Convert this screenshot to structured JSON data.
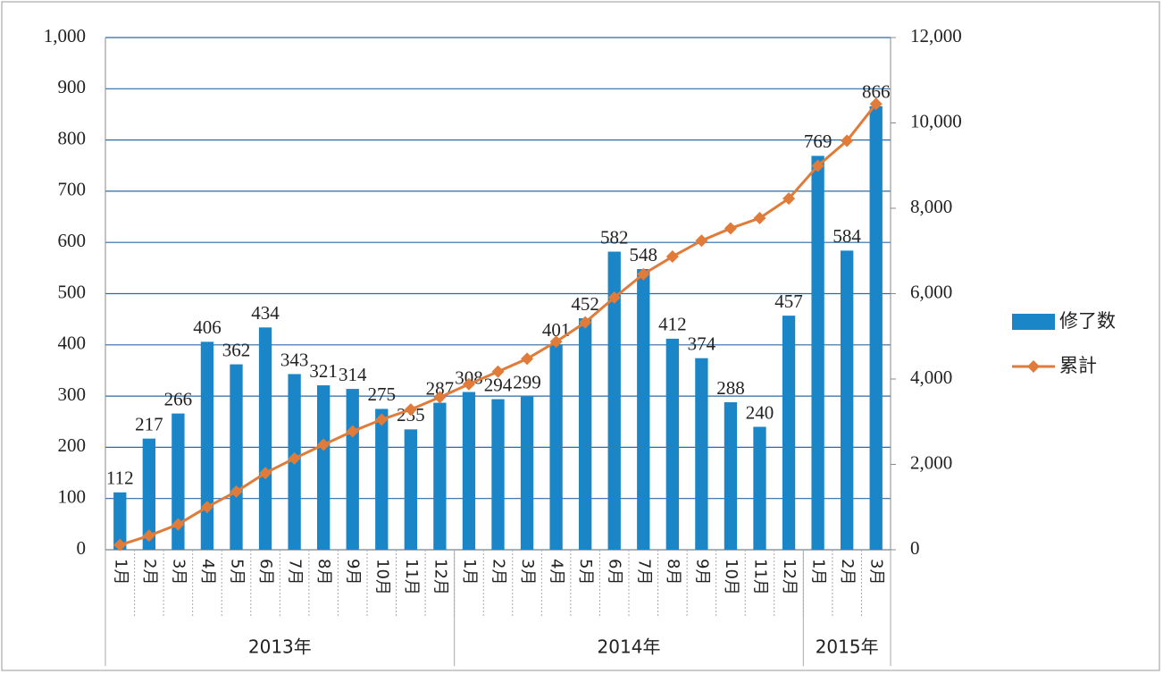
{
  "chart_data": {
    "type": "bar-line",
    "groups": [
      {
        "label": "2013年",
        "categories": [
          "1月",
          "2月",
          "3月",
          "4月",
          "5月",
          "6月",
          "7月",
          "8月",
          "9月",
          "10月",
          "11月",
          "12月"
        ]
      },
      {
        "label": "2014年",
        "categories": [
          "1月",
          "2月",
          "3月",
          "4月",
          "5月",
          "6月",
          "7月",
          "8月",
          "9月",
          "10月",
          "11月",
          "12月"
        ]
      },
      {
        "label": "2015年",
        "categories": [
          "1月",
          "2月",
          "3月"
        ]
      }
    ],
    "series": [
      {
        "name": "修了数",
        "type": "bar",
        "color": "#1a86c8",
        "values": [
          112,
          217,
          266,
          406,
          362,
          434,
          343,
          321,
          314,
          275,
          235,
          287,
          308,
          294,
          299,
          401,
          452,
          582,
          548,
          412,
          374,
          288,
          240,
          457,
          769,
          584,
          866
        ]
      },
      {
        "name": "累計",
        "type": "line",
        "axis": "y2",
        "color": "#e07b39",
        "values": [
          112,
          329,
          595,
          1001,
          1363,
          1797,
          2140,
          2461,
          2775,
          3050,
          3285,
          3572,
          3880,
          4174,
          4473,
          4874,
          5326,
          5908,
          6456,
          6868,
          7242,
          7530,
          7770,
          8227,
          8996,
          9580,
          10446
        ]
      }
    ],
    "ylim": [
      0,
      1000
    ],
    "yticks": [
      0,
      100,
      200,
      300,
      400,
      500,
      600,
      700,
      800,
      900,
      {
        "value": 1000,
        "label": "1,000"
      }
    ],
    "y2lim": [
      0,
      12000
    ],
    "y2ticks": [
      0,
      {
        "value": 2000,
        "label": "2,000"
      },
      {
        "value": 4000,
        "label": "4,000"
      },
      {
        "value": 6000,
        "label": "6,000"
      },
      {
        "value": 8000,
        "label": "8,000"
      },
      {
        "value": 10000,
        "label": "10,000"
      },
      {
        "value": 12000,
        "label": "12,000"
      }
    ],
    "grid": true,
    "legend": "right"
  }
}
